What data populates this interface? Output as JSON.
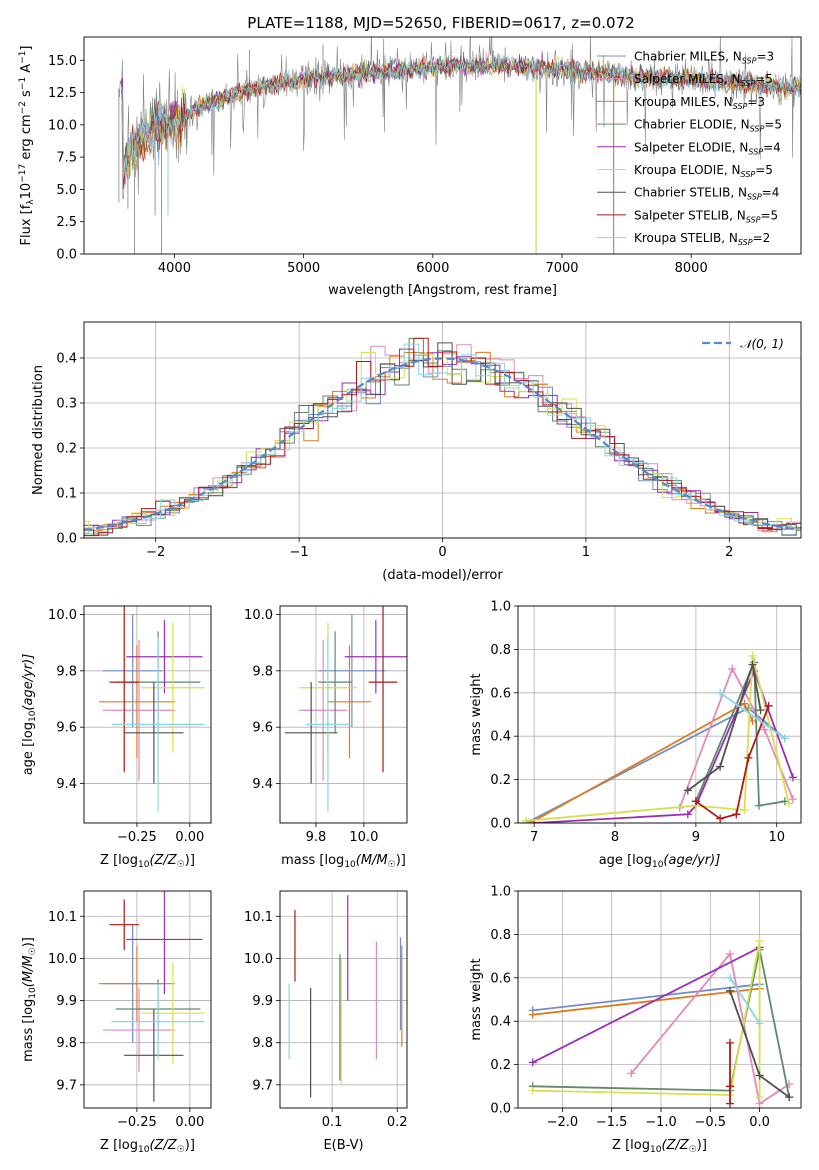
{
  "figure_title": "PLATE=1188, MJD=52650, FIBERID=0617, z=0.072",
  "colors": {
    "Chabrier MILES": "#6e8fc8",
    "Salpeter MILES": "#e48ab8",
    "Kroupa MILES": "#e07b1f",
    "Chabrier ELODIE": "#5f8a6a",
    "Salpeter ELODIE": "#9a2fb5",
    "Kroupa ELODIE": "#d6e04a",
    "Chabrier STELIB": "#505050",
    "Salpeter STELIB": "#b01818",
    "Kroupa STELIB": "#86d8e6"
  },
  "chart_data": [
    {
      "id": "spectrum",
      "type": "line",
      "xlabel": "wavelength [Angstrom, rest frame]",
      "ylabel_text": "Flux [f",
      "ylabel_sub": "λ",
      "ylabel_rest": "10",
      "ylabel_exp": "−17",
      "ylabel_tail": " erg cm",
      "ylabel_exp2": "−2",
      "ylabel_tail2": " s",
      "ylabel_exp3": "−1",
      "ylabel_tail3": " A",
      "ylabel_exp4": "−1",
      "ylabel_end": "]",
      "xlim": [
        3300,
        8850
      ],
      "ylim": [
        0,
        16.8
      ],
      "xticks": [
        4000,
        5000,
        6000,
        7000,
        8000
      ],
      "yticks": [
        "0.0",
        "2.5",
        "5.0",
        "7.5",
        "10.0",
        "12.5",
        "15.0"
      ],
      "ytick_values": [
        0,
        2.5,
        5,
        7.5,
        10,
        12.5,
        15
      ],
      "data_color": "#808080",
      "continuum": [
        [
          3600,
          6.0
        ],
        [
          3650,
          8.0
        ],
        [
          3750,
          9.0
        ],
        [
          3850,
          9.8
        ],
        [
          3950,
          10.0
        ],
        [
          4100,
          10.8
        ],
        [
          4300,
          11.8
        ],
        [
          4600,
          12.8
        ],
        [
          5000,
          13.5
        ],
        [
          5500,
          14.0
        ],
        [
          6000,
          14.5
        ],
        [
          6500,
          14.6
        ],
        [
          7000,
          14.3
        ],
        [
          7500,
          13.8
        ],
        [
          8000,
          13.5
        ],
        [
          8500,
          13.1
        ],
        [
          8850,
          12.8
        ]
      ],
      "spikes": [
        [
          3900,
          0
        ],
        [
          6800,
          0
        ],
        [
          7400,
          0
        ],
        [
          3570,
          4.0
        ],
        [
          3640,
          3.5
        ],
        [
          3690,
          0
        ],
        [
          3850,
          3.0
        ],
        [
          3950,
          3.5
        ],
        [
          4580,
          15.8
        ],
        [
          5150,
          16.2
        ],
        [
          6560,
          16.0
        ]
      ],
      "legend": [
        {
          "label": "Chabrier MILES, N",
          "sub": "SSP",
          "tail": "=3"
        },
        {
          "label": "Salpeter MILES, N",
          "sub": "SSP",
          "tail": "=5"
        },
        {
          "label": "Kroupa MILES, N",
          "sub": "SSP",
          "tail": "=3"
        },
        {
          "label": "Chabrier ELODIE, N",
          "sub": "SSP",
          "tail": "=5"
        },
        {
          "label": "Salpeter ELODIE, N",
          "sub": "SSP",
          "tail": "=4"
        },
        {
          "label": "Kroupa ELODIE, N",
          "sub": "SSP",
          "tail": "=5"
        },
        {
          "label": "Chabrier STELIB, N",
          "sub": "SSP",
          "tail": "=4"
        },
        {
          "label": "Salpeter STELIB, N",
          "sub": "SSP",
          "tail": "=5"
        },
        {
          "label": "Kroupa STELIB, N",
          "sub": "SSP",
          "tail": "=2"
        }
      ]
    },
    {
      "id": "residuals",
      "type": "histogram",
      "xlabel": "(data-model)/error",
      "ylabel": "Normed distribution",
      "xlim": [
        -2.5,
        2.5
      ],
      "ylim": [
        0,
        0.48
      ],
      "xticks": [
        "−2",
        "−1",
        "0",
        "1",
        "2"
      ],
      "xtick_values": [
        -2,
        -1,
        0,
        1,
        2
      ],
      "yticks": [
        "0.0",
        "0.1",
        "0.2",
        "0.3",
        "0.4"
      ],
      "ytick_values": [
        0,
        0.1,
        0.2,
        0.3,
        0.4
      ],
      "grid": true,
      "bin_width": 0.1,
      "reference_curve": {
        "label": "𝒩(0, 1)",
        "color": "#5588cc",
        "style": "dashed",
        "mean": 0,
        "sigma": 1
      }
    },
    {
      "id": "age_vs_Z",
      "type": "errorbar",
      "xlabel": "Z [log",
      "xlabel_sub": "10",
      "xlabel_tail": "(Z/Z",
      "xlabel_sub2": "☉",
      "xlabel_end": ")]",
      "ylabel": "age  [log",
      "ylabel_sub": "10",
      "ylabel_tail": "(age/yr)]",
      "xlim": [
        -0.5,
        0.1
      ],
      "ylim": [
        9.26,
        10.03
      ],
      "xticks": [
        "−0.25",
        "0.00"
      ],
      "xtick_values": [
        -0.25,
        0.0
      ],
      "yticks": [
        "9.4",
        "9.6",
        "9.8",
        "10.0"
      ],
      "ytick_values": [
        9.4,
        9.6,
        9.8,
        10.0
      ],
      "grid": true,
      "points": [
        {
          "model": "Chabrier MILES",
          "x": -0.27,
          "xerr": 0.14,
          "y": 9.8,
          "yerr": 0.2
        },
        {
          "model": "Salpeter MILES",
          "x": -0.24,
          "xerr": 0.17,
          "y": 9.66,
          "yerr": 0.25
        },
        {
          "model": "Kroupa MILES",
          "x": -0.25,
          "xerr": 0.18,
          "y": 9.69,
          "yerr": 0.2
        },
        {
          "model": "Chabrier ELODIE",
          "x": -0.15,
          "xerr": 0.2,
          "y": 9.76,
          "yerr": 0.18
        },
        {
          "model": "Salpeter ELODIE",
          "x": -0.12,
          "xerr": 0.18,
          "y": 9.85,
          "yerr": 0.13
        },
        {
          "model": "Kroupa ELODIE",
          "x": -0.08,
          "xerr": 0.15,
          "y": 9.74,
          "yerr": 0.23
        },
        {
          "model": "Chabrier STELIB",
          "x": -0.17,
          "xerr": 0.14,
          "y": 9.58,
          "yerr": 0.18
        },
        {
          "model": "Salpeter STELIB",
          "x": -0.31,
          "xerr": 0.07,
          "y": 9.76,
          "yerr": 0.32
        },
        {
          "model": "Kroupa STELIB",
          "x": -0.15,
          "xerr": 0.22,
          "y": 9.61,
          "yerr": 0.31
        }
      ]
    },
    {
      "id": "age_vs_mass",
      "type": "errorbar",
      "xlabel": "mass [log",
      "xlabel_sub": "10",
      "xlabel_tail": "(M/M",
      "xlabel_sub2": "☉",
      "xlabel_end": ")]",
      "xlim": [
        9.65,
        10.18
      ],
      "ylim": [
        9.26,
        10.03
      ],
      "xticks": [
        "9.8",
        "10.0"
      ],
      "xtick_values": [
        9.8,
        10.0
      ],
      "yticks": [
        "9.4",
        "9.6",
        "9.8",
        "10.0"
      ],
      "ytick_values": [
        9.4,
        9.6,
        9.8,
        10.0
      ],
      "grid": true,
      "points": [
        {
          "model": "Chabrier MILES",
          "x": 9.95,
          "xerr": 0.14,
          "y": 9.8,
          "yerr": 0.2
        },
        {
          "model": "Salpeter MILES",
          "x": 9.83,
          "xerr": 0.1,
          "y": 9.66,
          "yerr": 0.25
        },
        {
          "model": "Kroupa MILES",
          "x": 9.94,
          "xerr": 0.09,
          "y": 9.69,
          "yerr": 0.2
        },
        {
          "model": "Chabrier ELODIE",
          "x": 9.88,
          "xerr": 0.07,
          "y": 9.76,
          "yerr": 0.18
        },
        {
          "model": "Salpeter ELODIE",
          "x": 10.05,
          "xerr": 0.13,
          "y": 9.85,
          "yerr": 0.13
        },
        {
          "model": "Kroupa ELODIE",
          "x": 9.85,
          "xerr": 0.12,
          "y": 9.74,
          "yerr": 0.23
        },
        {
          "model": "Chabrier STELIB",
          "x": 9.78,
          "xerr": 0.11,
          "y": 9.58,
          "yerr": 0.18
        },
        {
          "model": "Salpeter STELIB",
          "x": 10.08,
          "xerr": 0.06,
          "y": 9.76,
          "yerr": 0.32
        },
        {
          "model": "Kroupa STELIB",
          "x": 9.85,
          "xerr": 0.09,
          "y": 9.61,
          "yerr": 0.31
        }
      ]
    },
    {
      "id": "massweight_vs_age",
      "type": "line",
      "xlabel": "age  [log",
      "xlabel_sub": "10",
      "xlabel_tail": "(age/yr)]",
      "ylabel": "mass weight",
      "xlim": [
        6.8,
        10.3
      ],
      "ylim": [
        0,
        1.0
      ],
      "xticks": [
        "7",
        "8",
        "9",
        "10"
      ],
      "xtick_values": [
        7,
        8,
        9,
        10
      ],
      "yticks": [
        "0.0",
        "0.2",
        "0.4",
        "0.6",
        "0.8",
        "1.0"
      ],
      "ytick_values": [
        0,
        0.2,
        0.4,
        0.6,
        0.8,
        1.0
      ],
      "grid": true,
      "series": [
        {
          "model": "Chabrier MILES",
          "points": [
            [
              6.9,
              0.0
            ],
            [
              9.65,
              0.53
            ],
            [
              10.1,
              0.39
            ]
          ]
        },
        {
          "model": "Kroupa MILES",
          "points": [
            [
              6.95,
              0.0
            ],
            [
              9.6,
              0.55
            ],
            [
              9.7,
              0.47
            ]
          ]
        },
        {
          "model": "Salpeter MILES",
          "points": [
            [
              8.8,
              0.07
            ],
            [
              9.45,
              0.71
            ],
            [
              9.85,
              0.43
            ],
            [
              10.2,
              0.11
            ]
          ]
        },
        {
          "model": "Chabrier ELODIE",
          "points": [
            [
              9.0,
              0.1
            ],
            [
              9.72,
              0.74
            ],
            [
              9.78,
              0.08
            ],
            [
              10.1,
              0.1
            ]
          ]
        },
        {
          "model": "Salpeter ELODIE",
          "points": [
            [
              7.0,
              0.0
            ],
            [
              8.9,
              0.04
            ],
            [
              9.0,
              0.08
            ],
            [
              9.72,
              0.7
            ],
            [
              10.2,
              0.21
            ]
          ]
        },
        {
          "model": "Kroupa ELODIE",
          "points": [
            [
              6.9,
              0.01
            ],
            [
              9.0,
              0.08
            ],
            [
              9.6,
              0.06
            ],
            [
              9.7,
              0.77
            ],
            [
              10.15,
              0.09
            ]
          ]
        },
        {
          "model": "Chabrier STELIB",
          "points": [
            [
              8.9,
              0.15
            ],
            [
              9.3,
              0.26
            ],
            [
              9.7,
              0.73
            ],
            [
              9.8,
              0.52
            ]
          ]
        },
        {
          "model": "Salpeter STELIB",
          "points": [
            [
              9.0,
              0.1
            ],
            [
              9.3,
              0.02
            ],
            [
              9.5,
              0.04
            ],
            [
              9.65,
              0.3
            ],
            [
              9.9,
              0.54
            ]
          ]
        },
        {
          "model": "Kroupa STELIB",
          "points": [
            [
              9.3,
              0.6
            ],
            [
              10.1,
              0.39
            ]
          ]
        }
      ]
    },
    {
      "id": "mass_vs_Z",
      "type": "errorbar",
      "xlabel": "Z [log",
      "xlabel_sub": "10",
      "xlabel_tail": "(Z/Z",
      "xlabel_sub2": "☉",
      "xlabel_end": ")]",
      "ylabel": "mass [log",
      "ylabel_sub": "10",
      "ylabel_tail": "(M/M",
      "ylabel_sub2": "☉",
      "ylabel_end": ")]",
      "xlim": [
        -0.5,
        0.1
      ],
      "ylim": [
        9.645,
        10.16
      ],
      "xticks": [
        "−0.25",
        "0.00"
      ],
      "xtick_values": [
        -0.25,
        0.0
      ],
      "yticks": [
        "9.7",
        "9.8",
        "9.9",
        "10.0",
        "10.1"
      ],
      "ytick_values": [
        9.7,
        9.8,
        9.9,
        10.0,
        10.1
      ],
      "grid": true,
      "points": [
        {
          "model": "Chabrier MILES",
          "x": -0.27,
          "xerr": 0.14,
          "y": 9.94,
          "yerr": 0.14
        },
        {
          "model": "Salpeter MILES",
          "x": -0.24,
          "xerr": 0.17,
          "y": 9.83,
          "yerr": 0.1
        },
        {
          "model": "Kroupa MILES",
          "x": -0.25,
          "xerr": 0.18,
          "y": 9.94,
          "yerr": 0.09
        },
        {
          "model": "Chabrier ELODIE",
          "x": -0.15,
          "xerr": 0.2,
          "y": 9.88,
          "yerr": 0.07
        },
        {
          "model": "Salpeter ELODIE",
          "x": -0.12,
          "xerr": 0.18,
          "y": 10.045,
          "yerr": 0.13
        },
        {
          "model": "Kroupa ELODIE",
          "x": -0.08,
          "xerr": 0.15,
          "y": 9.87,
          "yerr": 0.12
        },
        {
          "model": "Chabrier STELIB",
          "x": -0.17,
          "xerr": 0.14,
          "y": 9.77,
          "yerr": 0.11
        },
        {
          "model": "Salpeter STELIB",
          "x": -0.31,
          "xerr": 0.07,
          "y": 10.08,
          "yerr": 0.06
        },
        {
          "model": "Kroupa STELIB",
          "x": -0.15,
          "xerr": 0.22,
          "y": 9.85,
          "yerr": 0.09
        }
      ]
    },
    {
      "id": "mass_vs_EBV",
      "type": "errorbar",
      "xlabel": "E(B-V)",
      "xlim": [
        0.02,
        0.215
      ],
      "ylim": [
        9.645,
        10.16
      ],
      "xticks": [
        "0.1",
        "0.2"
      ],
      "xtick_values": [
        0.1,
        0.2
      ],
      "yticks": [
        "9.7",
        "9.8",
        "9.9",
        "10.0",
        "10.1"
      ],
      "ytick_values": [
        9.7,
        9.8,
        9.9,
        10.0,
        10.1
      ],
      "grid": true,
      "points": [
        {
          "model": "Chabrier MILES",
          "x": 0.205,
          "xerr": 0.0,
          "y": 9.94,
          "yerr": 0.11
        },
        {
          "model": "Salpeter MILES",
          "x": 0.168,
          "xerr": 0.0,
          "y": 9.9,
          "yerr": 0.14
        },
        {
          "model": "Kroupa MILES",
          "x": 0.207,
          "xerr": 0.0,
          "y": 9.91,
          "yerr": 0.12
        },
        {
          "model": "Chabrier ELODIE",
          "x": 0.112,
          "xerr": 0.0,
          "y": 9.86,
          "yerr": 0.15
        },
        {
          "model": "Salpeter ELODIE",
          "x": 0.124,
          "xerr": 0.0,
          "y": 10.025,
          "yerr": 0.125
        },
        {
          "model": "Kroupa ELODIE",
          "x": 0.114,
          "xerr": 0.0,
          "y": 9.85,
          "yerr": 0.15
        },
        {
          "model": "Chabrier STELIB",
          "x": 0.067,
          "xerr": 0.0,
          "y": 9.8,
          "yerr": 0.13
        },
        {
          "model": "Salpeter STELIB",
          "x": 0.043,
          "xerr": 0.0,
          "y": 10.03,
          "yerr": 0.085
        },
        {
          "model": "Kroupa STELIB",
          "x": 0.034,
          "xerr": 0.0,
          "y": 9.85,
          "yerr": 0.09
        }
      ]
    },
    {
      "id": "massweight_vs_Z",
      "type": "line",
      "xlabel": "Z [log",
      "xlabel_sub": "10",
      "xlabel_tail": "(Z/Z",
      "xlabel_sub2": "☉",
      "xlabel_end": ")]",
      "ylabel": "mass weight",
      "xlim": [
        -2.45,
        0.42
      ],
      "ylim": [
        0,
        1.0
      ],
      "xticks": [
        "−2.0",
        "−1.5",
        "−1.0",
        "−0.5",
        "0.0"
      ],
      "xtick_values": [
        -2.0,
        -1.5,
        -1.0,
        -0.5,
        0.0
      ],
      "yticks": [
        "0.0",
        "0.2",
        "0.4",
        "0.6",
        "0.8",
        "1.0"
      ],
      "ytick_values": [
        0,
        0.2,
        0.4,
        0.6,
        0.8,
        1.0
      ],
      "grid": true,
      "series": [
        {
          "model": "Chabrier MILES",
          "points": [
            [
              -2.3,
              0.45
            ],
            [
              0.0,
              0.57
            ]
          ]
        },
        {
          "model": "Kroupa MILES",
          "points": [
            [
              -2.3,
              0.43
            ],
            [
              0.0,
              0.55
            ]
          ]
        },
        {
          "model": "Salpeter MILES",
          "points": [
            [
              -1.3,
              0.16
            ],
            [
              -0.3,
              0.71
            ],
            [
              0.0,
              0.02
            ],
            [
              0.3,
              0.11
            ]
          ]
        },
        {
          "model": "Chabrier ELODIE",
          "points": [
            [
              -2.3,
              0.1
            ],
            [
              -0.3,
              0.08
            ],
            [
              0.0,
              0.73
            ],
            [
              0.3,
              0.05
            ]
          ]
        },
        {
          "model": "Salpeter ELODIE",
          "points": [
            [
              -2.3,
              0.21
            ],
            [
              0.0,
              0.74
            ]
          ]
        },
        {
          "model": "Kroupa ELODIE",
          "points": [
            [
              -2.3,
              0.08
            ],
            [
              -0.3,
              0.06
            ],
            [
              0.0,
              0.77
            ],
            [
              0.0,
              0.05
            ]
          ]
        },
        {
          "model": "Chabrier STELIB",
          "points": [
            [
              -0.3,
              0.54
            ],
            [
              0.0,
              0.15
            ],
            [
              0.3,
              0.05
            ]
          ]
        },
        {
          "model": "Salpeter STELIB",
          "points": [
            [
              -0.3,
              0.3
            ],
            [
              -0.3,
              0.02
            ],
            [
              -0.3,
              0.1
            ]
          ]
        },
        {
          "model": "Kroupa STELIB",
          "points": [
            [
              -0.3,
              0.6
            ],
            [
              0.0,
              0.39
            ]
          ]
        }
      ]
    }
  ]
}
